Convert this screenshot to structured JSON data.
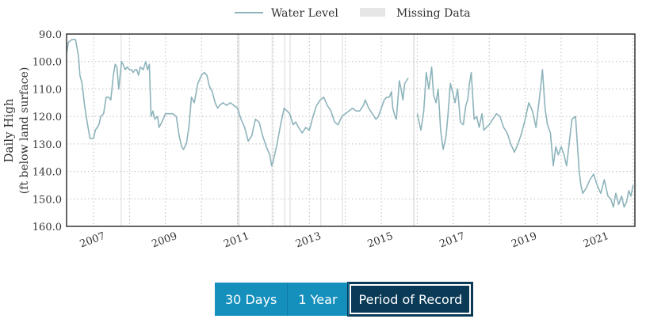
{
  "chart_data": {
    "type": "line",
    "xlabel": "",
    "ylabel": "Daily High",
    "ylabel_sub": "(ft below land surface)",
    "y_reversed": true,
    "ylim": [
      90.0,
      160.0
    ],
    "yticks": [
      "90.0",
      "100.0",
      "110.0",
      "120.0",
      "130.0",
      "140.0",
      "150.0",
      "160.0"
    ],
    "xlim": [
      2006.25,
      2022.05
    ],
    "xticks": [
      "2007",
      "2009",
      "2011",
      "2013",
      "2015",
      "2017",
      "2019",
      "2021"
    ],
    "legend": [
      {
        "label": "Water Level",
        "color": "#8db4bb"
      },
      {
        "label": "Missing Data",
        "color": "#e6e6e6"
      }
    ],
    "legend_position": "top-center",
    "grid": true,
    "colors": {
      "line": "#8db4bb",
      "missing": "#e6e6e6",
      "grid": "#bfbfbf",
      "axis": "#333333"
    },
    "missing_periods": [
      [
        2007.75,
        2007.78
      ],
      [
        2011.0,
        2011.06
      ],
      [
        2011.95,
        2011.98
      ],
      [
        2012.3,
        2012.33
      ],
      [
        2012.45,
        2012.47
      ],
      [
        2013.3,
        2013.32
      ],
      [
        2013.9,
        2013.92
      ],
      [
        2015.88,
        2015.93
      ]
    ],
    "series": [
      {
        "name": "Water Level",
        "segments": [
          {
            "x": [
              2006.25,
              2006.3,
              2006.4,
              2006.5,
              2006.58,
              2006.62,
              2006.68,
              2006.75,
              2006.82,
              2006.9,
              2007.0,
              2007.05,
              2007.1,
              2007.15,
              2007.2,
              2007.28,
              2007.35,
              2007.42,
              2007.48,
              2007.55,
              2007.6,
              2007.65,
              2007.7,
              2007.78,
              2007.82,
              2007.88,
              2007.93,
              2008.0,
              2008.05,
              2008.1,
              2008.15,
              2008.2,
              2008.25,
              2008.3,
              2008.38,
              2008.45,
              2008.5,
              2008.55,
              2008.6,
              2008.65,
              2008.7,
              2008.78,
              2008.82,
              2008.9,
              2009.0,
              2009.1,
              2009.2,
              2009.3,
              2009.38,
              2009.45,
              2009.5,
              2009.58,
              2009.65,
              2009.72,
              2009.8,
              2009.9,
              2010.0,
              2010.08,
              2010.15,
              2010.22,
              2010.3,
              2010.38,
              2010.45,
              2010.5,
              2010.6,
              2010.7,
              2010.8,
              2010.9,
              2011.0,
              2011.1,
              2011.2,
              2011.3,
              2011.4,
              2011.5,
              2011.6,
              2011.7,
              2011.8,
              2011.9,
              2011.95,
              2012.0,
              2012.1,
              2012.2,
              2012.3,
              2012.38,
              2012.45,
              2012.55,
              2012.62,
              2012.7,
              2012.8,
              2012.9,
              2013.0,
              2013.1,
              2013.2,
              2013.3,
              2013.4,
              2013.5,
              2013.6,
              2013.7,
              2013.8,
              2013.9,
              2014.0,
              2014.1,
              2014.2,
              2014.3,
              2014.4,
              2014.5,
              2014.55,
              2014.65,
              2014.75,
              2014.85,
              2014.92,
              2015.0,
              2015.08,
              2015.15,
              2015.22,
              2015.28,
              2015.32,
              2015.38,
              2015.42,
              2015.5,
              2015.55,
              2015.6,
              2015.65,
              2015.75
            ],
            "y": [
              97,
              93,
              92,
              92,
              98,
              105,
              108,
              116,
              122,
              128,
              128,
              125,
              124,
              123,
              120,
              119,
              113,
              113,
              114,
              105,
              101,
              102,
              110,
              100,
              101,
              103,
              102,
              103,
              103,
              104,
              103,
              103,
              105,
              102,
              103,
              100,
              103,
              101,
              120,
              118,
              121,
              120,
              124,
              122,
              119,
              119,
              119,
              120,
              127,
              131,
              132,
              130,
              124,
              113,
              115,
              108,
              105,
              104,
              105,
              109,
              111,
              115,
              117,
              116,
              115,
              116,
              115,
              116,
              117,
              121,
              124,
              129,
              127,
              121,
              122,
              127,
              131,
              134,
              138,
              136,
              130,
              123,
              117,
              118,
              119,
              123,
              122,
              124,
              126,
              124,
              125,
              120,
              116,
              114,
              113,
              116,
              118,
              122,
              123,
              120,
              119,
              118,
              117,
              118,
              118,
              116,
              114,
              117,
              119,
              121,
              120,
              117,
              114,
              113,
              113,
              111,
              117,
              120,
              121,
              107,
              110,
              114,
              108,
              106
            ]
          },
          {
            "x": [
              2016.0,
              2016.1,
              2016.18,
              2016.25,
              2016.32,
              2016.4,
              2016.45,
              2016.52,
              2016.58,
              2016.65,
              2016.72,
              2016.8,
              2016.85,
              2016.92,
              2017.0,
              2017.05,
              2017.12,
              2017.2,
              2017.28,
              2017.35,
              2017.4,
              2017.45,
              2017.5,
              2017.58,
              2017.65,
              2017.72,
              2017.8,
              2017.85,
              2017.92,
              2018.0,
              2018.1,
              2018.2,
              2018.3,
              2018.4,
              2018.5,
              2018.6,
              2018.7,
              2018.8,
              2018.9,
              2019.0,
              2019.1,
              2019.2,
              2019.3,
              2019.4,
              2019.48,
              2019.55,
              2019.62,
              2019.7,
              2019.78,
              2019.85,
              2019.92,
              2020.0,
              2020.08,
              2020.15,
              2020.22,
              2020.3,
              2020.4,
              2020.5,
              2020.55,
              2020.6,
              2020.7,
              2020.8,
              2020.9,
              2021.0,
              2021.1,
              2021.2,
              2021.25,
              2021.3,
              2021.38,
              2021.45,
              2021.52,
              2021.6,
              2021.68,
              2021.75,
              2021.82,
              2021.88,
              2021.94,
              2022.0
            ],
            "y": [
              119,
              125,
              118,
              104,
              110,
              102,
              112,
              115,
              110,
              125,
              132,
              127,
              120,
              108,
              112,
              115,
              110,
              122,
              123,
              116,
              114,
              108,
              104,
              121,
              120,
              124,
              119,
              125,
              124,
              123,
              121,
              119,
              120,
              124,
              126,
              130,
              133,
              130,
              126,
              121,
              115,
              118,
              124,
              113,
              103,
              117,
              123,
              126,
              138,
              131,
              134,
              131,
              134,
              138,
              130,
              121,
              120,
              140,
              145,
              148,
              146,
              143,
              141,
              145,
              148,
              143,
              146,
              149,
              150,
              153,
              148,
              152,
              149,
              153,
              151,
              147,
              149,
              145
            ]
          }
        ]
      }
    ]
  },
  "buttons": {
    "days30": "30 Days",
    "year1": "1 Year",
    "period": "Period of Record"
  }
}
